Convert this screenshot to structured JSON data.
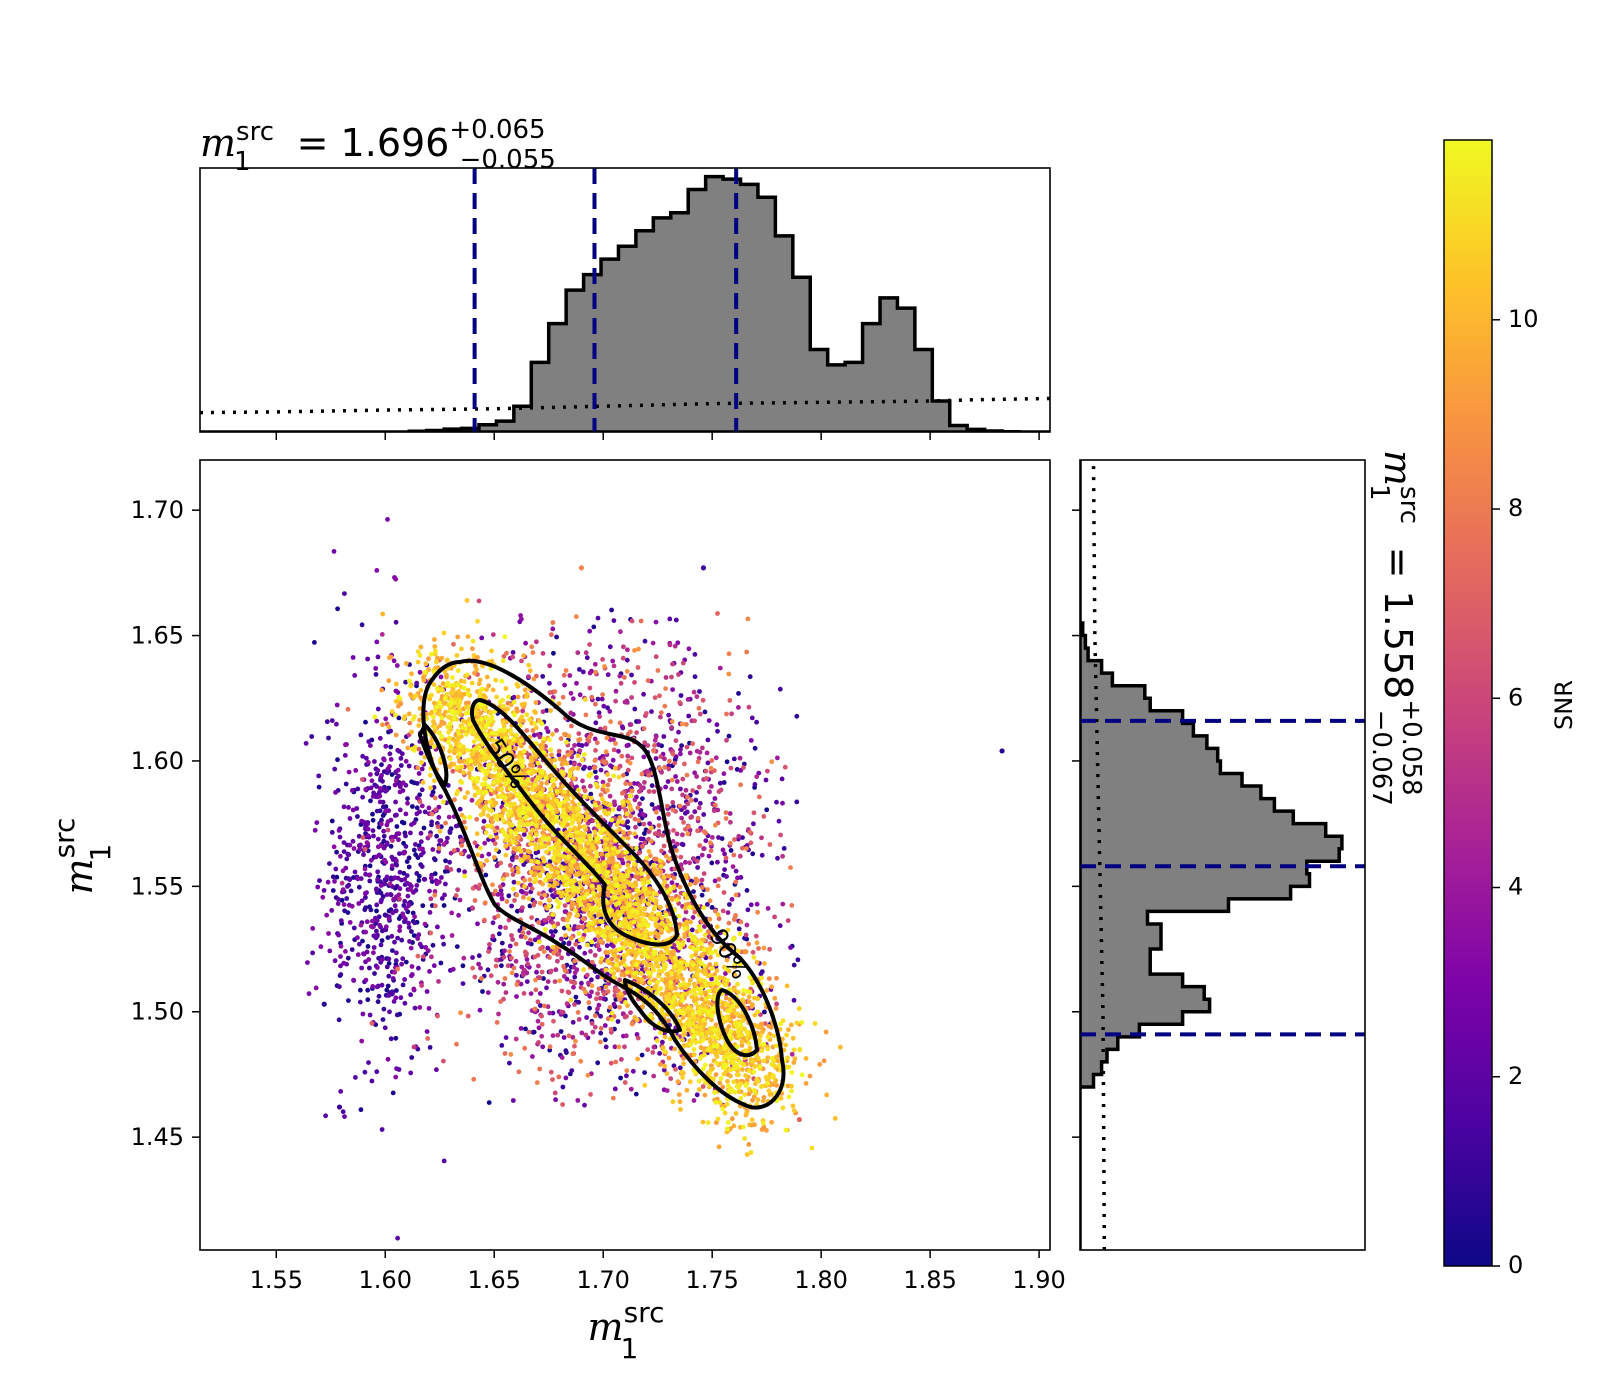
{
  "chart_data": {
    "type": "scatter",
    "x_label": "m",
    "x_label_sub": "1",
    "x_label_sup": "src",
    "y_label": "m",
    "y_label_sub": "1",
    "y_label_sup": "src",
    "x_range": [
      1.515,
      1.905
    ],
    "y_range": [
      1.405,
      1.72
    ],
    "x_ticks": [
      "1.55",
      "1.60",
      "1.65",
      "1.70",
      "1.75",
      "1.80",
      "1.85",
      "1.90"
    ],
    "y_ticks": [
      "1.45",
      "1.50",
      "1.55",
      "1.60",
      "1.65",
      "1.70"
    ],
    "top_title": {
      "symbol": "m",
      "sub": "1",
      "sup": "src",
      "eq": " = 1.696",
      "plus": "+0.065",
      "minus": "−0.055"
    },
    "right_title": {
      "symbol": "m",
      "sub": "1",
      "sup": "src",
      "eq": " = 1.558",
      "plus": "+0.058",
      "minus": "−0.067"
    },
    "x_quantiles": [
      1.641,
      1.696,
      1.761
    ],
    "y_quantiles": [
      1.491,
      1.558,
      1.616
    ],
    "contour_labels": [
      "50%",
      "90%"
    ],
    "colorbar": {
      "label": "SNR",
      "ticks": [
        "0",
        "2",
        "4",
        "6",
        "8",
        "10"
      ],
      "range": [
        0,
        11.9
      ],
      "colormap": "plasma"
    },
    "colors": {
      "quantile_line": "#000080",
      "hist_fill": "#808080",
      "contour": "#000000"
    },
    "x_hist": {
      "edges_start": 1.515,
      "bin_width": 0.008,
      "values": [
        0,
        0,
        0,
        0,
        0,
        0,
        0,
        0,
        0,
        0,
        0,
        0,
        0.003,
        0.006,
        0.011,
        0.014,
        0.028,
        0.042,
        0.1,
        0.27,
        0.42,
        0.55,
        0.61,
        0.67,
        0.72,
        0.78,
        0.83,
        0.85,
        0.94,
        0.99,
        0.98,
        0.96,
        0.91,
        0.76,
        0.6,
        0.32,
        0.26,
        0.27,
        0.42,
        0.52,
        0.48,
        0.32,
        0.12,
        0.025,
        0.01,
        0.004,
        0.001,
        0,
        0,
        0,
        0,
        0,
        0,
        0,
        0,
        0,
        0,
        0,
        0,
        0,
        0,
        0,
        0,
        0,
        0
      ]
    },
    "x_prior": [
      [
        1.515,
        0.075
      ],
      [
        1.55,
        0.078
      ],
      [
        1.6,
        0.085
      ],
      [
        1.65,
        0.09
      ],
      [
        1.7,
        0.1
      ],
      [
        1.75,
        0.11
      ],
      [
        1.8,
        0.115
      ],
      [
        1.85,
        0.12
      ],
      [
        1.87,
        0.125
      ],
      [
        1.905,
        0.13
      ]
    ],
    "y_hist": {
      "edges_start": 1.405,
      "bin_width": 0.005,
      "values": [
        0,
        0,
        0,
        0,
        0,
        0,
        0,
        0,
        0,
        0,
        0,
        0,
        0,
        0.05,
        0.08,
        0.1,
        0.14,
        0.22,
        0.38,
        0.48,
        0.46,
        0.38,
        0.26,
        0.26,
        0.3,
        0.3,
        0.25,
        0.55,
        0.78,
        0.85,
        0.84,
        0.96,
        0.97,
        0.91,
        0.79,
        0.72,
        0.67,
        0.6,
        0.52,
        0.51,
        0.47,
        0.42,
        0.38,
        0.26,
        0.24,
        0.12,
        0.08,
        0.03,
        0.02,
        0.01,
        0,
        0,
        0,
        0,
        0,
        0,
        0,
        0,
        0,
        0,
        0,
        0,
        0,
        0
      ]
    },
    "y_prior": [
      [
        1.405,
        0.09
      ],
      [
        1.45,
        0.088
      ],
      [
        1.5,
        0.085
      ],
      [
        1.55,
        0.075
      ],
      [
        1.6,
        0.065
      ],
      [
        1.65,
        0.055
      ],
      [
        1.72,
        0.05
      ]
    ]
  }
}
